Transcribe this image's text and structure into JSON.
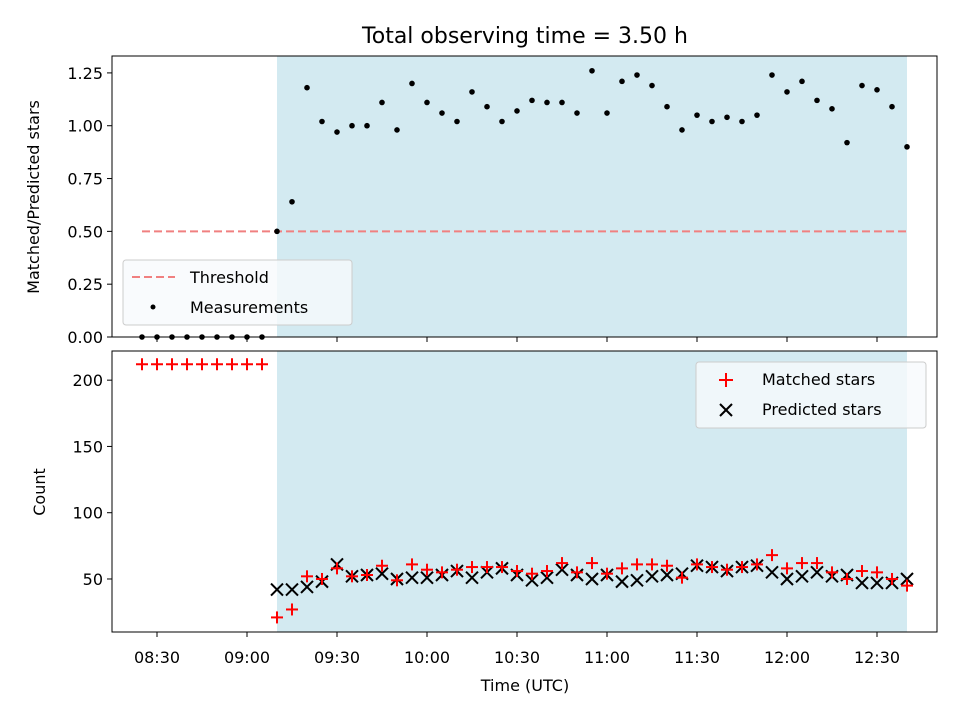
{
  "chart_data": [
    {
      "type": "scatter",
      "title": "Total observing time = 3.50 h",
      "ylabel": "Matched/Predicted stars",
      "xlabel": "",
      "ylim": [
        0,
        1.33
      ],
      "yticks": [
        0.0,
        0.25,
        0.5,
        0.75,
        1.0,
        1.25
      ],
      "ytick_labels": [
        "0.00",
        "0.25",
        "0.50",
        "0.75",
        "1.00",
        "1.25"
      ],
      "grid": false,
      "legend_loc": "lower-left",
      "shaded_span": [
        "09:10",
        "12:40"
      ],
      "shaded_color": "#d3eaf1",
      "threshold": {
        "name": "Threshold",
        "value": 0.5,
        "x_range": [
          "08:25",
          "12:40"
        ],
        "color": "#f08080"
      },
      "series": [
        {
          "name": "Measurements",
          "color": "#000000",
          "x": [
            "08:25",
            "08:30",
            "08:35",
            "08:40",
            "08:45",
            "08:50",
            "08:55",
            "09:00",
            "09:05",
            "09:10",
            "09:15",
            "09:20",
            "09:25",
            "09:30",
            "09:35",
            "09:40",
            "09:45",
            "09:50",
            "09:55",
            "10:00",
            "10:05",
            "10:10",
            "10:15",
            "10:20",
            "10:25",
            "10:30",
            "10:35",
            "10:40",
            "10:45",
            "10:50",
            "10:55",
            "11:00",
            "11:05",
            "11:10",
            "11:15",
            "11:20",
            "11:25",
            "11:30",
            "11:35",
            "11:40",
            "11:45",
            "11:50",
            "11:55",
            "12:00",
            "12:05",
            "12:10",
            "12:15",
            "12:20",
            "12:25",
            "12:30",
            "12:35",
            "12:40"
          ],
          "y": [
            0,
            0,
            0,
            0,
            0,
            0,
            0,
            0,
            0,
            0.5,
            0.64,
            1.18,
            1.02,
            0.97,
            1.0,
            1.0,
            1.11,
            0.98,
            1.2,
            1.11,
            1.06,
            1.02,
            1.16,
            1.09,
            1.02,
            1.07,
            1.12,
            1.11,
            1.11,
            1.06,
            1.26,
            1.06,
            1.21,
            1.24,
            1.19,
            1.09,
            0.98,
            1.05,
            1.02,
            1.04,
            1.02,
            1.05,
            1.24,
            1.16,
            1.21,
            1.12,
            1.08,
            0.92,
            1.19,
            1.17,
            1.09,
            0.9
          ]
        }
      ]
    },
    {
      "type": "scatter",
      "title": "",
      "ylabel": "Count",
      "xlabel": "Time (UTC)",
      "ylim": [
        10,
        222
      ],
      "yticks": [
        50,
        100,
        150,
        200
      ],
      "ytick_labels": [
        "50",
        "100",
        "150",
        "200"
      ],
      "xlim": [
        "08:15",
        "12:50"
      ],
      "xticks": [
        "08:30",
        "09:00",
        "09:30",
        "10:00",
        "10:30",
        "11:00",
        "11:30",
        "12:00",
        "12:30"
      ],
      "xtick_labels": [
        "08:30",
        "09:00",
        "09:30",
        "10:00",
        "10:30",
        "11:00",
        "11:30",
        "12:00",
        "12:30"
      ],
      "grid": false,
      "legend_loc": "top-right",
      "shaded_span": [
        "09:10",
        "12:40"
      ],
      "shaded_color": "#d3eaf1",
      "series": [
        {
          "name": "Matched stars",
          "marker": "+",
          "color": "#ff0000",
          "x": [
            "08:25",
            "08:30",
            "08:35",
            "08:40",
            "08:45",
            "08:50",
            "08:55",
            "09:00",
            "09:05",
            "09:10",
            "09:15",
            "09:20",
            "09:25",
            "09:30",
            "09:35",
            "09:40",
            "09:45",
            "09:50",
            "09:55",
            "10:00",
            "10:05",
            "10:10",
            "10:15",
            "10:20",
            "10:25",
            "10:30",
            "10:35",
            "10:40",
            "10:45",
            "10:50",
            "10:55",
            "11:00",
            "11:05",
            "11:10",
            "11:15",
            "11:20",
            "11:25",
            "11:30",
            "11:35",
            "11:40",
            "11:45",
            "11:50",
            "11:55",
            "12:00",
            "12:05",
            "12:10",
            "12:15",
            "12:20",
            "12:25",
            "12:30",
            "12:35",
            "12:40"
          ],
          "y": [
            212,
            212,
            212,
            212,
            212,
            212,
            212,
            212,
            212,
            21,
            27,
            52,
            50,
            58,
            52,
            53,
            60,
            49,
            61,
            57,
            55,
            57,
            59,
            59,
            59,
            56,
            54,
            56,
            62,
            55,
            62,
            54,
            58,
            61,
            61,
            60,
            51,
            61,
            59,
            57,
            59,
            61,
            68,
            58,
            62,
            62,
            55,
            50,
            56,
            55,
            50,
            45
          ]
        },
        {
          "name": "Predicted stars",
          "marker": "x",
          "color": "#000000",
          "x": [
            "09:10",
            "09:15",
            "09:20",
            "09:25",
            "09:30",
            "09:35",
            "09:40",
            "09:45",
            "09:50",
            "09:55",
            "10:00",
            "10:05",
            "10:10",
            "10:15",
            "10:20",
            "10:25",
            "10:30",
            "10:35",
            "10:40",
            "10:45",
            "10:50",
            "10:55",
            "11:00",
            "11:05",
            "11:10",
            "11:15",
            "11:20",
            "11:25",
            "11:30",
            "11:35",
            "11:40",
            "11:45",
            "11:50",
            "11:55",
            "12:00",
            "12:05",
            "12:10",
            "12:15",
            "12:20",
            "12:25",
            "12:30",
            "12:35",
            "12:40"
          ],
          "y": [
            42,
            42,
            44,
            48,
            61,
            52,
            53,
            54,
            50,
            51,
            51,
            53,
            56,
            51,
            55,
            58,
            53,
            49,
            51,
            57,
            53,
            50,
            53,
            48,
            49,
            52,
            53,
            54,
            60,
            59,
            56,
            59,
            60,
            55,
            50,
            52,
            55,
            52,
            53,
            47,
            47,
            47,
            50
          ]
        }
      ]
    }
  ]
}
